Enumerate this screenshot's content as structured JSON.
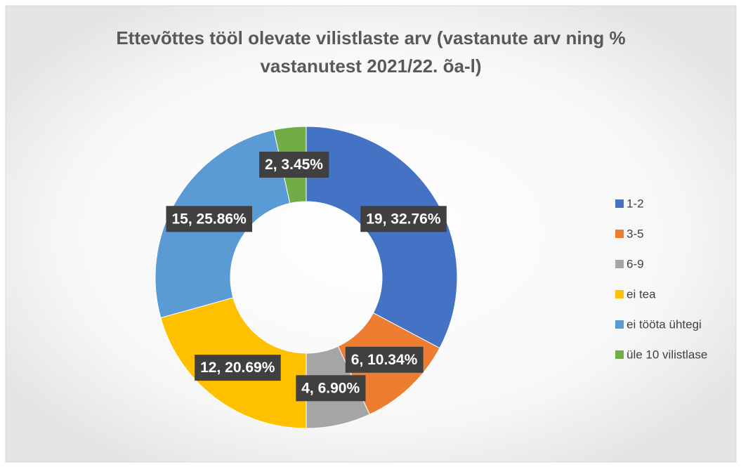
{
  "chart_data": {
    "type": "doughnut",
    "title": [
      "Ettevõttes tööl olevate vilistlaste arv (vastanute arv ning %",
      "vastanutest 2021/22. õa-l)"
    ],
    "categories": [
      "1-2",
      "3-5",
      "6-9",
      "ei tea",
      "ei tööta ühtegi",
      "üle 10 vilistlase"
    ],
    "values": [
      19,
      6,
      4,
      12,
      15,
      2
    ],
    "value_labels": [
      "19, 32.76%",
      "6, 10.34%",
      "4, 6.90%",
      "12, 20.69%",
      "15, 25.86%",
      "2, 3.45%"
    ],
    "colors": [
      "#4472c4",
      "#ed7d31",
      "#a5a5a5",
      "#ffc000",
      "#5b9bd5",
      "#70ad47"
    ],
    "legend": "right"
  }
}
